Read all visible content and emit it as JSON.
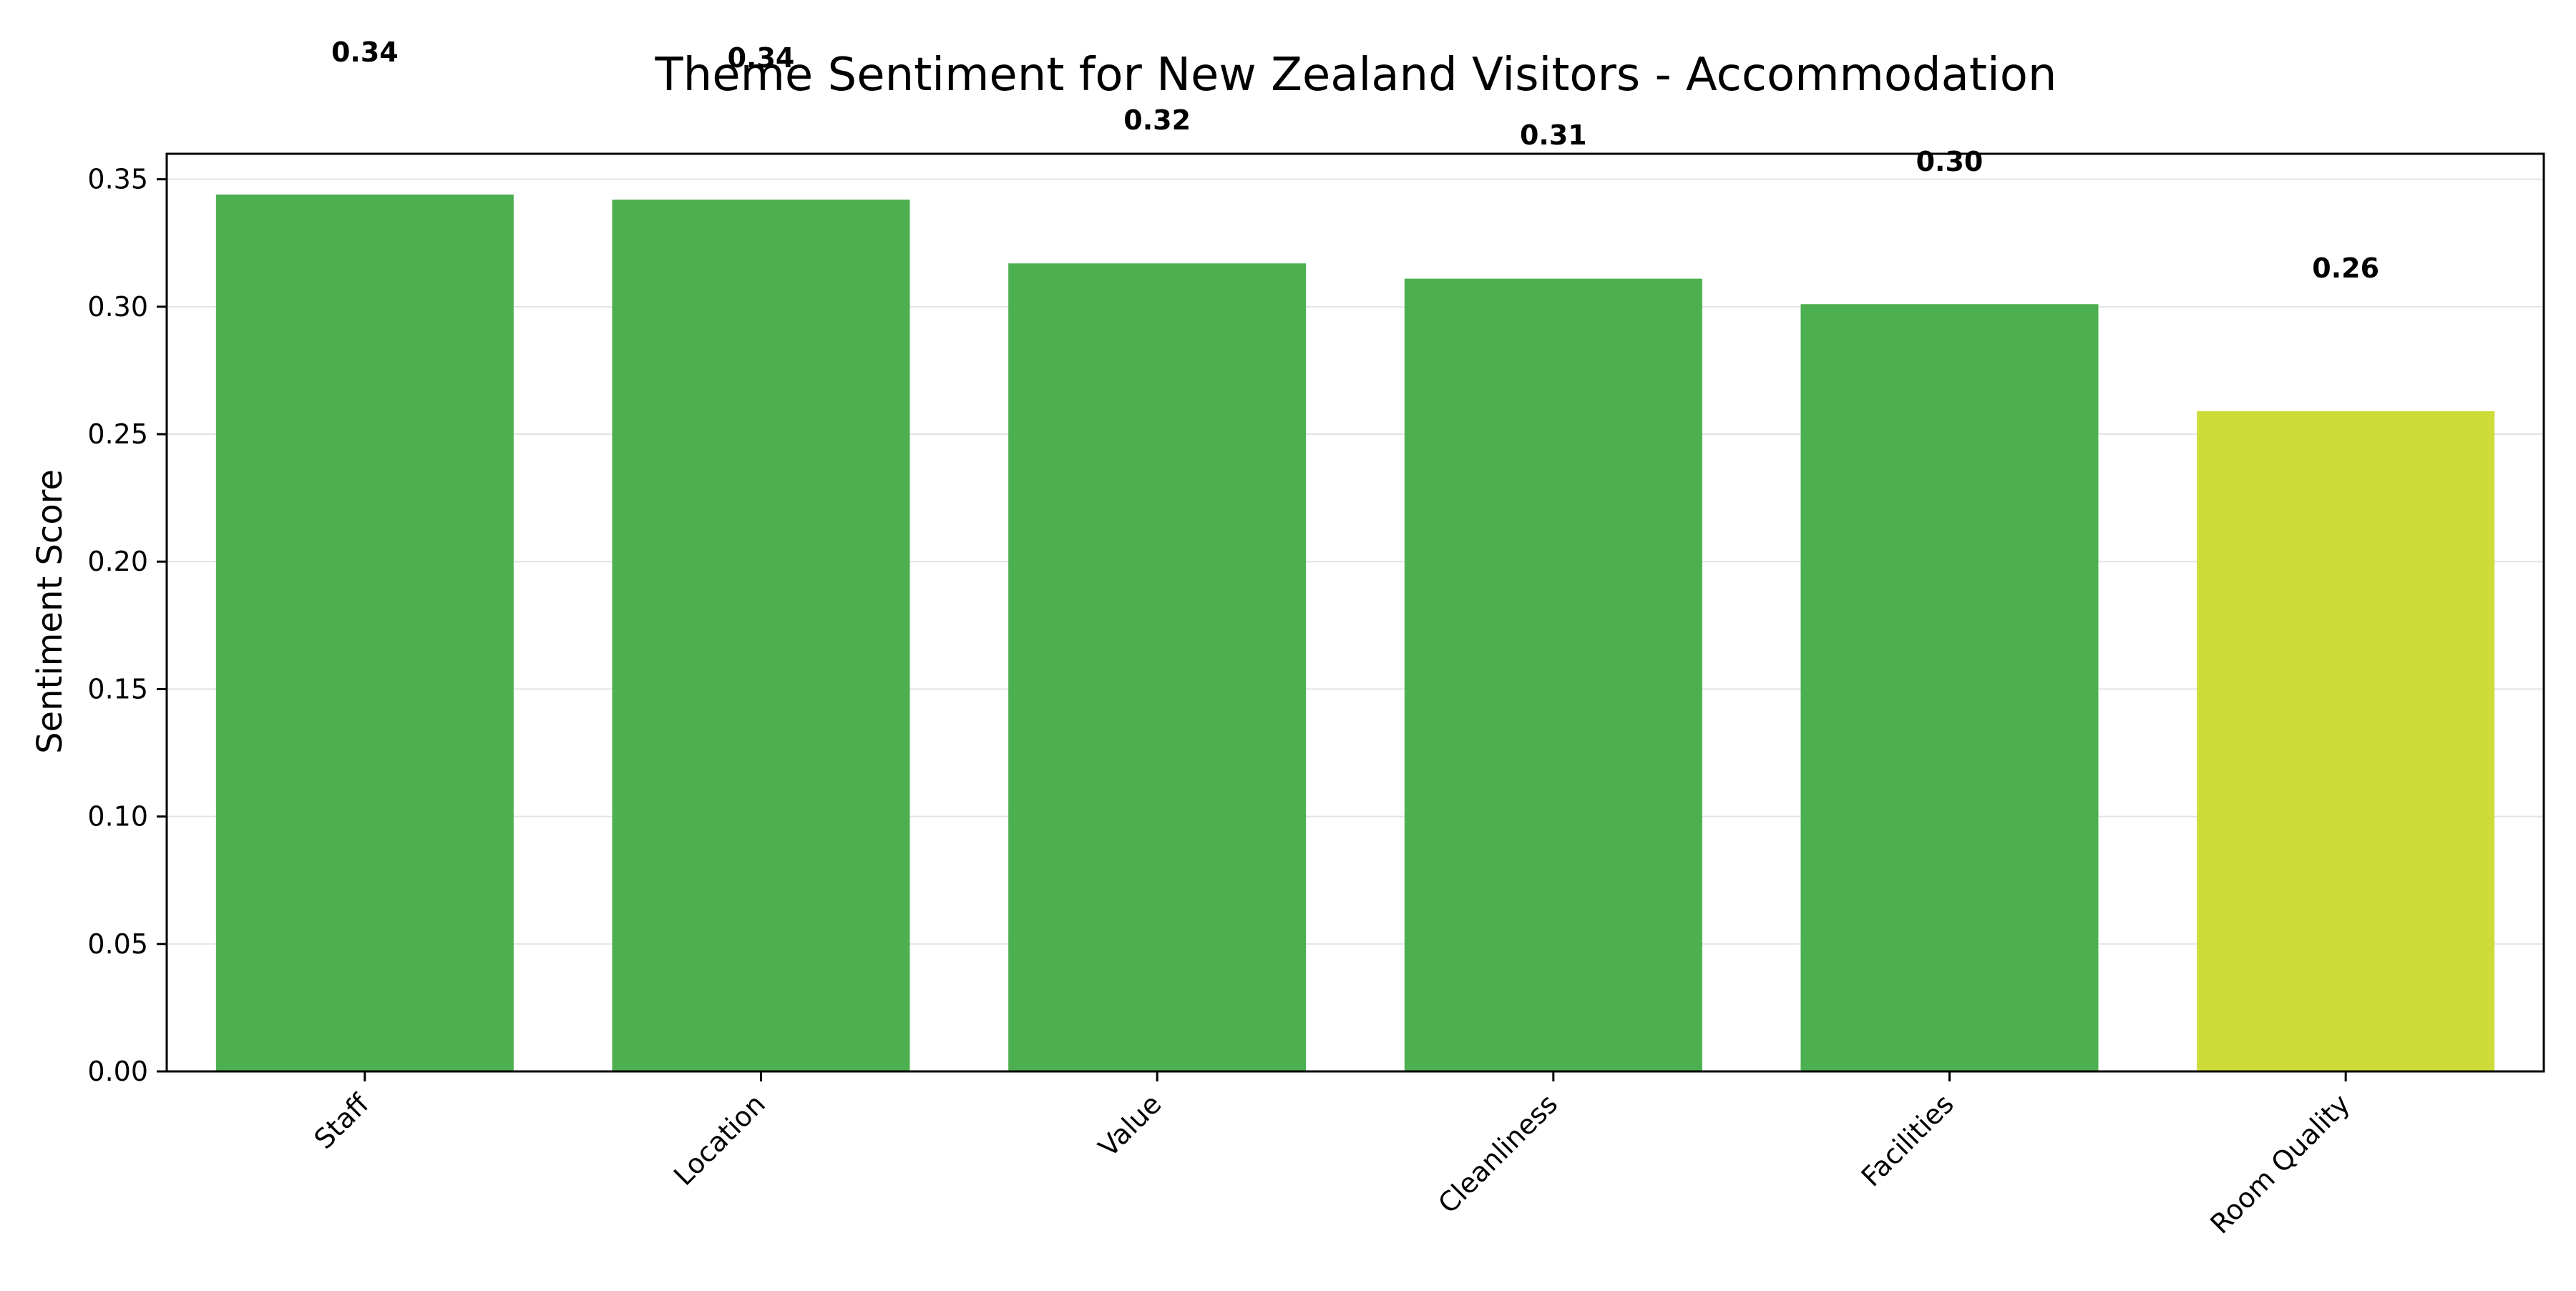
{
  "chart_data": {
    "type": "bar",
    "title": "Theme Sentiment for New Zealand Visitors - Accommodation",
    "xlabel": "",
    "ylabel": "Sentiment Score",
    "categories": [
      "Staff",
      "Location",
      "Value",
      "Cleanliness",
      "Facilities",
      "Room Quality"
    ],
    "values": [
      0.344,
      0.342,
      0.317,
      0.311,
      0.301,
      0.259
    ],
    "value_labels": [
      "0.34",
      "0.34",
      "0.32",
      "0.31",
      "0.30",
      "0.26"
    ],
    "bar_colors": [
      "#4caf50",
      "#4caf50",
      "#4caf50",
      "#4caf50",
      "#4caf50",
      "#cddc39"
    ],
    "ylim": [
      0,
      0.36
    ],
    "yticks": [
      0.0,
      0.05,
      0.1,
      0.15,
      0.2,
      0.25,
      0.3,
      0.35
    ],
    "ytick_labels": [
      "0.00",
      "0.05",
      "0.10",
      "0.15",
      "0.20",
      "0.25",
      "0.30",
      "0.35"
    ],
    "grid": "horizontal",
    "legend": "none"
  }
}
